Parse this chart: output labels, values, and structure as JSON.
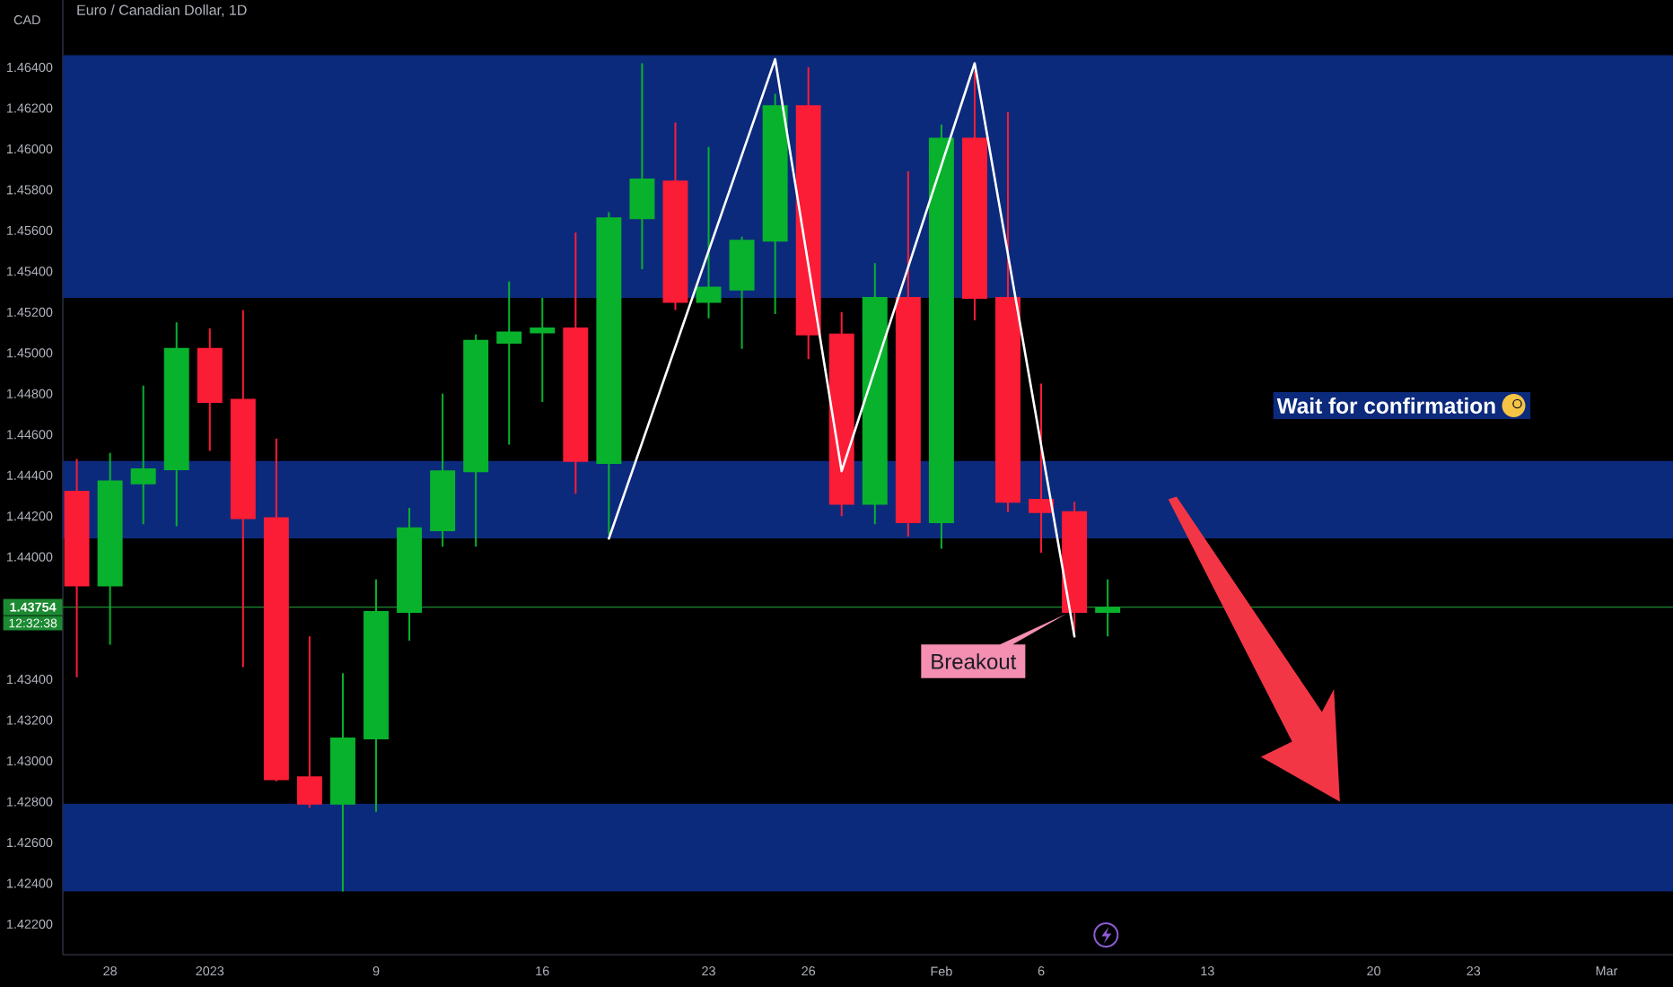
{
  "chart_data": {
    "type": "candlestick",
    "title": "Euro / Canadian Dollar, 1D",
    "ylabel": "CAD",
    "categories": [
      null,
      "28",
      null,
      null,
      "2023",
      null,
      null,
      null,
      null,
      "9",
      null,
      null,
      null,
      null,
      "16",
      null,
      null,
      null,
      null,
      "23",
      null,
      null,
      "26",
      null,
      null,
      null,
      "Feb",
      null,
      null,
      "6",
      null,
      null,
      null,
      null,
      "13",
      null,
      null,
      null,
      null,
      "20",
      null,
      null,
      "23",
      null,
      null,
      null,
      "Mar",
      null,
      null
    ],
    "ohlc": [
      [
        1.4432,
        1.4448,
        1.4341,
        1.4386
      ],
      [
        1.4386,
        1.4451,
        1.4357,
        1.4437
      ],
      [
        1.4436,
        1.4484,
        1.4416,
        1.4443
      ],
      [
        1.4443,
        1.4515,
        1.4415,
        1.4502
      ],
      [
        1.4502,
        1.4512,
        1.4452,
        1.4476
      ],
      [
        1.4477,
        1.4521,
        1.4346,
        1.4419
      ],
      [
        1.4419,
        1.4458,
        1.429,
        1.4291
      ],
      [
        1.4292,
        1.4361,
        1.4277,
        1.4279
      ],
      [
        1.4279,
        1.4343,
        1.4236,
        1.4311
      ],
      [
        1.4311,
        1.4389,
        1.4275,
        1.4373
      ],
      [
        1.4373,
        1.4424,
        1.4359,
        1.4414
      ],
      [
        1.4413,
        1.448,
        1.4405,
        1.4442
      ],
      [
        1.4442,
        1.4509,
        1.4405,
        1.4506
      ],
      [
        1.4505,
        1.4535,
        1.4455,
        1.451
      ],
      [
        1.451,
        1.4527,
        1.4476,
        1.4512
      ],
      [
        1.4512,
        1.4559,
        1.4431,
        1.4447
      ],
      [
        1.4446,
        1.4569,
        1.4411,
        1.4566
      ],
      [
        1.4566,
        1.4642,
        1.4541,
        1.4585
      ],
      [
        1.4584,
        1.4613,
        1.4521,
        1.4525
      ],
      [
        1.4525,
        1.4601,
        1.4517,
        1.4532
      ],
      [
        1.4531,
        1.4557,
        1.4502,
        1.4555
      ],
      [
        1.4555,
        1.4627,
        1.4519,
        1.4621
      ],
      [
        1.4621,
        1.464,
        1.4497,
        1.4509
      ],
      [
        1.4509,
        1.452,
        1.442,
        1.4426
      ],
      [
        1.4426,
        1.4544,
        1.4416,
        1.4527
      ],
      [
        1.4527,
        1.4589,
        1.441,
        1.4417
      ],
      [
        1.4417,
        1.4612,
        1.4404,
        1.4605
      ],
      [
        1.4605,
        1.4638,
        1.4516,
        1.4527
      ],
      [
        1.4527,
        1.4618,
        1.4422,
        1.4427
      ],
      [
        1.4428,
        1.4485,
        1.4402,
        1.4422
      ],
      [
        1.4422,
        1.4427,
        1.4363,
        1.4373
      ],
      [
        1.4373,
        1.4389,
        1.4361,
        1.4375
      ],
      null,
      null,
      null,
      null,
      null,
      null,
      null,
      null,
      null,
      null,
      null,
      null,
      null,
      null,
      null,
      null,
      null
    ],
    "colors": [
      "#fb1c36",
      "#08b22d",
      "#08b22d",
      "#08b22d",
      "#fb1c36",
      "#fb1c36",
      "#fb1c36",
      "#fb1c36",
      "#08b22d",
      "#08b22d",
      "#08b22d",
      "#08b22d",
      "#08b22d",
      "#08b22d",
      "#08b22d",
      "#fb1c36",
      "#08b22d",
      "#08b22d",
      "#fb1c36",
      "#08b22d",
      "#08b22d",
      "#08b22d",
      "#fb1c36",
      "#fb1c36",
      "#08b22d",
      "#fb1c36",
      "#08b22d",
      "#fb1c36",
      "#fb1c36",
      "#fb1c36",
      "#fb1c36",
      "#08b22d",
      null,
      null,
      null,
      null,
      null,
      null,
      null,
      null,
      null,
      null,
      null,
      null,
      null,
      null,
      null,
      null,
      null
    ],
    "series": [
      {
        "type": "line",
        "color": "#ffffff",
        "values": [
          null,
          null,
          null,
          null,
          null,
          null,
          null,
          null,
          null,
          null,
          null,
          null,
          null,
          null,
          null,
          null,
          1.4409,
          null,
          null,
          null,
          null,
          1.4644,
          null,
          1.4442,
          null,
          null,
          null,
          1.4642,
          null,
          null,
          1.4361,
          null,
          null,
          null,
          null,
          null,
          null,
          null,
          null,
          null,
          null,
          null,
          null,
          null,
          null,
          null,
          null,
          null,
          null
        ]
      }
    ],
    "ylim": [
      1.4205,
      1.4673
    ],
    "yticks": [
      {
        "value": 1.422,
        "label": "1.42200"
      },
      {
        "value": 1.424,
        "label": "1.42400"
      },
      {
        "value": 1.426,
        "label": "1.42600"
      },
      {
        "value": 1.428,
        "label": "1.42800"
      },
      {
        "value": 1.43,
        "label": "1.43000"
      },
      {
        "value": 1.432,
        "label": "1.43200"
      },
      {
        "value": 1.434,
        "label": "1.43400"
      },
      {
        "value": 1.44,
        "label": "1.44000"
      },
      {
        "value": 1.442,
        "label": "1.44200"
      },
      {
        "value": 1.444,
        "label": "1.44400"
      },
      {
        "value": 1.446,
        "label": "1.44600"
      },
      {
        "value": 1.448,
        "label": "1.44800"
      },
      {
        "value": 1.45,
        "label": "1.45000"
      },
      {
        "value": 1.452,
        "label": "1.45200"
      },
      {
        "value": 1.454,
        "label": "1.45400"
      },
      {
        "value": 1.456,
        "label": "1.45600"
      },
      {
        "value": 1.458,
        "label": "1.45800"
      },
      {
        "value": 1.46,
        "label": "1.46000"
      },
      {
        "value": 1.462,
        "label": "1.46200"
      },
      {
        "value": 1.464,
        "label": "1.46400"
      }
    ],
    "ref_lines": [
      {
        "axis": "y",
        "value": 1.43754,
        "label": "1.43754",
        "color": "#1c8a32"
      }
    ],
    "bands": [
      {
        "axis": "y",
        "from": 1.4527,
        "to": 1.4646,
        "color": "#0c2a7c"
      },
      {
        "axis": "y",
        "from": 1.4409,
        "to": 1.4447,
        "color": "#0c2a7c"
      },
      {
        "axis": "y",
        "from": 1.4236,
        "to": 1.4279,
        "color": "#0c2a7c"
      }
    ],
    "annotations": [
      "12:32:38",
      "Breakout",
      "Wait for confirmation"
    ]
  }
}
